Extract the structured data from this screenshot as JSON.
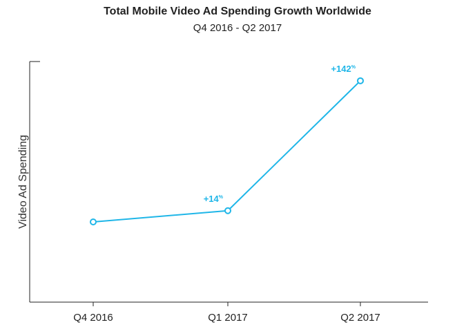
{
  "chart_data": {
    "type": "line",
    "title": "Total Mobile Video Ad Spending Growth Worldwide",
    "subtitle": "Q4 2016 - Q2 2017",
    "xlabel": "",
    "ylabel": "Video Ad Spending",
    "categories": [
      "Q4 2016",
      "Q1 2017",
      "Q2 2017"
    ],
    "series": [
      {
        "values": [
          100,
          114,
          276
        ],
        "color": "#1fb6e8",
        "data_labels": [
          null,
          {
            "main": "+14",
            "unit": "%"
          },
          {
            "main": "+142",
            "unit": "%"
          }
        ]
      }
    ],
    "ylim": [
      0,
      300
    ],
    "y_ticks_shown": false,
    "grid": false,
    "legend": "none"
  }
}
